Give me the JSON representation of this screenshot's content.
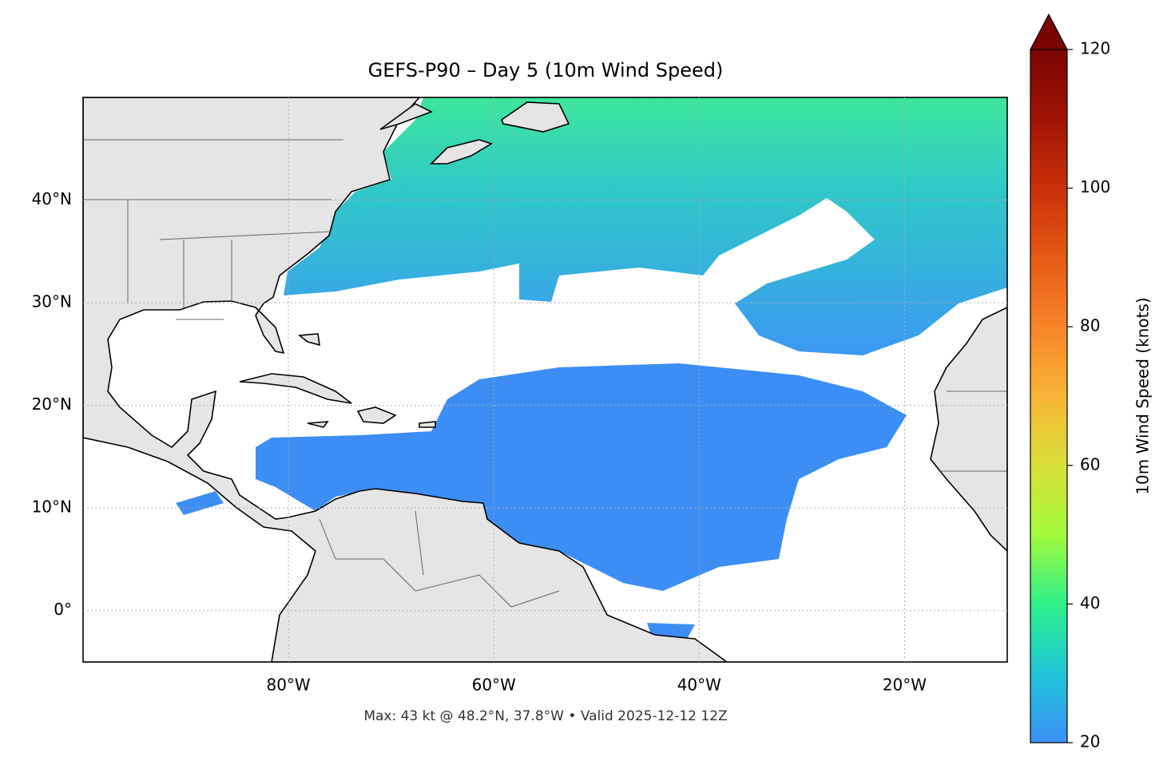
{
  "chart_data": {
    "type": "map",
    "title": "GEFS-P90 – Day 5 (10m Wind Speed)",
    "xlim": [
      -100,
      -10
    ],
    "ylim": [
      -5,
      50
    ],
    "xticks": [
      {
        "value": -80,
        "label": "80°W"
      },
      {
        "value": -60,
        "label": "60°W"
      },
      {
        "value": -40,
        "label": "40°W"
      },
      {
        "value": -20,
        "label": "20°W"
      }
    ],
    "yticks": [
      {
        "value": 0,
        "label": "0°"
      },
      {
        "value": 10,
        "label": "10°N"
      },
      {
        "value": 20,
        "label": "20°N"
      },
      {
        "value": 30,
        "label": "30°N"
      },
      {
        "value": 40,
        "label": "40°N"
      }
    ],
    "grid": true,
    "colorbar": {
      "label": "10m Wind Speed (knots)",
      "lim": [
        20,
        120
      ],
      "ticks": [
        20,
        40,
        60,
        80,
        100,
        120
      ],
      "extend": "max"
    },
    "annotation": "Max: 43 kt @ 48.2°N, 37.8°W • Valid 2025-12-12 12Z"
  }
}
